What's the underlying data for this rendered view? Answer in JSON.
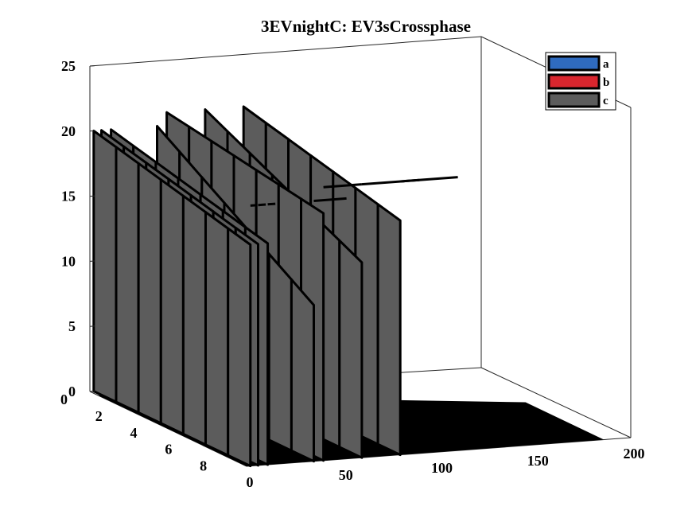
{
  "chart_data": {
    "type": "bar",
    "style": "3d-ribbon",
    "title": "3EVnightC: EV3sCrossphase",
    "xlabel": "",
    "ylabel": "",
    "zlabel": "",
    "xlim": [
      0,
      200
    ],
    "ylim": [
      0,
      9
    ],
    "zlim": [
      0,
      25
    ],
    "xticks": [
      "0",
      "50",
      "100",
      "150",
      "200"
    ],
    "yticks": [
      "0",
      "2",
      "4",
      "6",
      "8"
    ],
    "zticks": [
      "0",
      "5",
      "10",
      "15",
      "20",
      "25"
    ],
    "legend_position": "top-right",
    "series": [
      {
        "name": "a",
        "color": "#2f6bbf",
        "pulses": []
      },
      {
        "name": "b",
        "color": "#d9262e",
        "pulses": []
      },
      {
        "name": "c",
        "color": "#5c5c5c",
        "pulses": [
          {
            "x_start": 2,
            "x_end": 5,
            "z_front": 17,
            "z_back": 20
          },
          {
            "x_start": 6,
            "x_end": 10,
            "z_front": 17,
            "z_back": 20
          },
          {
            "x_start": 11,
            "x_end": 15,
            "z_front": 17,
            "z_back": 20
          },
          {
            "x_start": 35,
            "x_end": 52,
            "z_front": 12,
            "z_back": 20
          },
          {
            "x_start": 40,
            "x_end": 60,
            "z_front": 19,
            "z_back": 21
          },
          {
            "x_start": 60,
            "x_end": 90,
            "z_front": 15,
            "z_back": 21
          },
          {
            "x_start": 80,
            "x_end": 110,
            "z_front": 18,
            "z_back": 21
          }
        ]
      }
    ],
    "floor_color": "#000000"
  }
}
